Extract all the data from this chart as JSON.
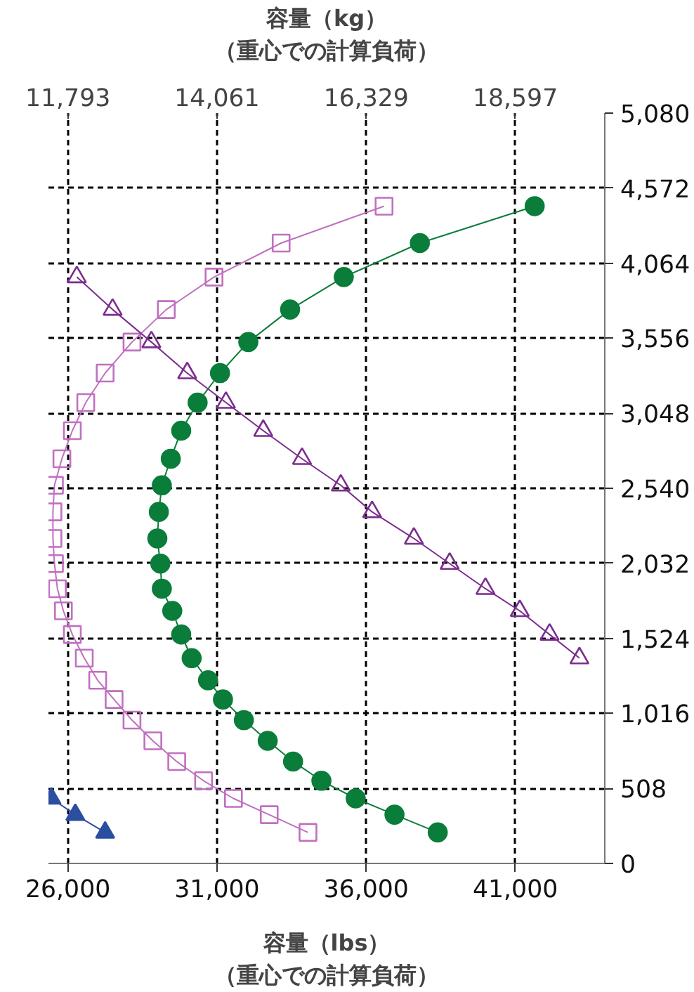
{
  "chart_data": {
    "type": "line",
    "xlabel": "容量（lbs）（重心での計算負荷）",
    "x2label": "容量（kg）（重心での計算負荷）",
    "xlim": [
      25350,
      44000
    ],
    "xticks": [
      {
        "value": 26000,
        "label": "26,000"
      },
      {
        "value": 31000,
        "label": "31,000"
      },
      {
        "value": 36000,
        "label": "36,000"
      },
      {
        "value": 41000,
        "label": "41,000"
      }
    ],
    "x2lim": [
      11498,
      19958
    ],
    "x2ticks": [
      {
        "value": 11793,
        "label": "11,793"
      },
      {
        "value": 14061,
        "label": "14,061"
      },
      {
        "value": 16329,
        "label": "16,329"
      },
      {
        "value": 18597,
        "label": "18,597"
      }
    ],
    "ylim": [
      0,
      5080
    ],
    "yticks": [
      0,
      508,
      {
        "value": 1016,
        "label": "1,016"
      },
      {
        "value": 1524,
        "label": "1,524"
      },
      {
        "value": 2032,
        "label": "2,032"
      },
      {
        "value": 2540,
        "label": "2,540"
      },
      {
        "value": 3048,
        "label": "3,048"
      },
      {
        "value": 3556,
        "label": "3,556"
      },
      {
        "value": 4064,
        "label": "4,064"
      },
      {
        "value": 4572,
        "label": "4,572"
      },
      {
        "value": 5080,
        "label": "5,080"
      }
    ],
    "grid": true,
    "series": [
      {
        "color": "#0a7d3a",
        "marker": "circle",
        "x": [
          41650,
          37800,
          35250,
          33450,
          32050,
          31100,
          30350,
          29800,
          29450,
          29150,
          29050,
          29000,
          29100,
          29150,
          29500,
          29800,
          30150,
          30700,
          31200,
          31900,
          32700,
          33550,
          34500,
          35650,
          36950,
          38400
        ],
        "values": [
          4450,
          4200,
          3970,
          3750,
          3530,
          3320,
          3120,
          2930,
          2740,
          2560,
          2380,
          2200,
          2030,
          1860,
          1710,
          1550,
          1390,
          1240,
          1110,
          970,
          830,
          690,
          560,
          440,
          330,
          210
        ]
      },
      {
        "color": "#c070c0",
        "marker": "square",
        "x": [
          36600,
          33150,
          30900,
          29300,
          28150,
          27250,
          26600,
          26150,
          25800,
          25550,
          25500,
          25500,
          25550,
          25650,
          25850,
          26150,
          26550,
          27000,
          27550,
          28150,
          28850,
          29650,
          30550,
          31550,
          32750,
          34050
        ],
        "values": [
          4450,
          4200,
          3970,
          3750,
          3530,
          3320,
          3120,
          2930,
          2740,
          2560,
          2380,
          2200,
          2030,
          1860,
          1710,
          1550,
          1390,
          1240,
          1110,
          970,
          830,
          690,
          560,
          440,
          330,
          210
        ]
      },
      {
        "color": "#7b2d8e",
        "marker": "triangle",
        "x": [
          26300,
          27500,
          28800,
          30000,
          31300,
          32550,
          33850,
          35150,
          36200,
          37600,
          38800,
          40000,
          41150,
          42150,
          43150
        ],
        "values": [
          3970,
          3750,
          3530,
          3320,
          3120,
          2930,
          2740,
          2560,
          2380,
          2200,
          2030,
          1860,
          1710,
          1550,
          1390
        ]
      },
      {
        "color": "#2a4ea0",
        "marker": "triangle",
        "x": [
          25450,
          26250,
          27250
        ],
        "values": [
          440,
          330,
          210
        ]
      }
    ]
  }
}
